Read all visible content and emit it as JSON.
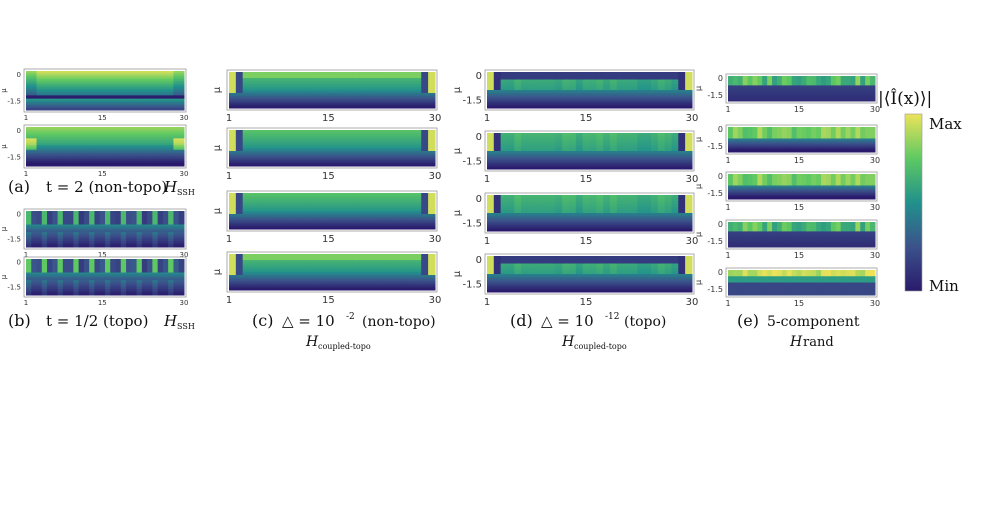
{
  "colorbar": {
    "label": "|⟨Î(x)⟩|",
    "max_label": "Max",
    "min_label": "Min",
    "colormap": "viridis"
  },
  "columns": [
    {
      "id": "a-b",
      "captions": [
        {
          "label": "(a)",
          "text": "t = 2 (non-topo)",
          "ham": "H",
          "sub": "SSH"
        },
        {
          "label": "(b)",
          "text": "t = 1/2 (topo)",
          "ham": "H",
          "sub": "SSH"
        }
      ]
    },
    {
      "id": "c",
      "captions": [
        {
          "label": "(c)",
          "text": "△ = 10",
          "sup": "-2",
          "tail": "(non-topo)",
          "ham": "H",
          "sub": "coupled-topo"
        }
      ]
    },
    {
      "id": "d",
      "captions": [
        {
          "label": "(d)",
          "text": "△ = 10",
          "sup": "-12",
          "tail": "(topo)",
          "ham": "H",
          "sub": "coupled-topo"
        }
      ]
    },
    {
      "id": "e",
      "captions": [
        {
          "label": "(e)",
          "text": "5-component",
          "ham": "H",
          "sub": "",
          "ham_text": "rand"
        }
      ]
    }
  ],
  "chart_data": [
    {
      "type": "heatmap",
      "panel": "a1",
      "pattern": "ssh_nontopo",
      "x_ticks": [
        "1",
        "15",
        "30"
      ],
      "y_ticks": [
        "0",
        "-1.5"
      ],
      "ylabel": "μ",
      "xlim": [
        1,
        30
      ],
      "ylim": [
        -2,
        0.2
      ],
      "n_cols": 30,
      "n_rows": 24
    },
    {
      "type": "heatmap",
      "panel": "a2",
      "pattern": "ssh_nontopo_2",
      "x_ticks": [
        "1",
        "15",
        "30"
      ],
      "y_ticks": [
        "0",
        "-1.5"
      ],
      "ylabel": "μ",
      "xlim": [
        1,
        30
      ],
      "ylim": [
        -2,
        0.2
      ],
      "n_cols": 30,
      "n_rows": 24
    },
    {
      "type": "heatmap",
      "panel": "b1",
      "pattern": "ssh_topo",
      "x_ticks": [
        "1",
        "15",
        "30"
      ],
      "y_ticks": [
        "0",
        "-1.5"
      ],
      "ylabel": "μ",
      "xlim": [
        1,
        30
      ],
      "ylim": [
        -2,
        0.2
      ],
      "n_cols": 30,
      "n_rows": 24
    },
    {
      "type": "heatmap",
      "panel": "b2",
      "pattern": "ssh_topo_2",
      "x_ticks": [
        "1",
        "15",
        "30"
      ],
      "y_ticks": [
        "0",
        "-1.5"
      ],
      "ylabel": "μ",
      "xlim": [
        1,
        30
      ],
      "ylim": [
        -2,
        0.2
      ],
      "n_cols": 30,
      "n_rows": 24
    },
    {
      "type": "heatmap",
      "panel": "c1",
      "pattern": "coupled_band_top",
      "x_ticks": [
        "1",
        "15",
        "30"
      ],
      "y_ticks": [],
      "ylabel": "μ",
      "xlim": [
        1,
        30
      ],
      "ylim": [
        -2,
        0.2
      ],
      "n_cols": 30,
      "n_rows": 24
    },
    {
      "type": "heatmap",
      "panel": "c2",
      "pattern": "coupled_band",
      "x_ticks": [
        "1",
        "15",
        "30"
      ],
      "y_ticks": [],
      "ylabel": "μ",
      "xlim": [
        1,
        30
      ],
      "ylim": [
        -2,
        0.2
      ],
      "n_cols": 30,
      "n_rows": 24
    },
    {
      "type": "heatmap",
      "panel": "c3",
      "pattern": "coupled_band",
      "x_ticks": [
        "1",
        "15",
        "30"
      ],
      "y_ticks": [],
      "ylabel": "μ",
      "xlim": [
        1,
        30
      ],
      "ylim": [
        -2,
        0.2
      ],
      "n_cols": 30,
      "n_rows": 24
    },
    {
      "type": "heatmap",
      "panel": "c4",
      "pattern": "coupled_band_top",
      "x_ticks": [
        "1",
        "15",
        "30"
      ],
      "y_ticks": [],
      "ylabel": "μ",
      "xlim": [
        1,
        30
      ],
      "ylim": [
        -2,
        0.2
      ],
      "n_cols": 30,
      "n_rows": 24
    },
    {
      "type": "heatmap",
      "panel": "d1",
      "pattern": "topo_block",
      "x_ticks": [
        "1",
        "15",
        "30"
      ],
      "y_ticks": [
        "0",
        "-1.5"
      ],
      "ylabel": "μ",
      "xlim": [
        1,
        30
      ],
      "ylim": [
        -2,
        0.2
      ],
      "n_cols": 30,
      "n_rows": 24
    },
    {
      "type": "heatmap",
      "panel": "d2",
      "pattern": "topo_block_2",
      "x_ticks": [
        "1",
        "15",
        "30"
      ],
      "y_ticks": [
        "0",
        "-1.5"
      ],
      "ylabel": "μ",
      "xlim": [
        1,
        30
      ],
      "ylim": [
        -2,
        0.2
      ],
      "n_cols": 30,
      "n_rows": 24
    },
    {
      "type": "heatmap",
      "panel": "d3",
      "pattern": "topo_block_2",
      "x_ticks": [
        "1",
        "15",
        "30"
      ],
      "y_ticks": [
        "0",
        "-1.5"
      ],
      "ylabel": "μ",
      "xlim": [
        1,
        30
      ],
      "ylim": [
        -2,
        0.2
      ],
      "n_cols": 30,
      "n_rows": 24
    },
    {
      "type": "heatmap",
      "panel": "d4",
      "pattern": "topo_block",
      "x_ticks": [
        "1",
        "15",
        "30"
      ],
      "y_ticks": [
        "0",
        "-1.5"
      ],
      "ylabel": "μ",
      "xlim": [
        1,
        30
      ],
      "ylim": [
        -2,
        0.2
      ],
      "n_cols": 30,
      "n_rows": 24
    },
    {
      "type": "heatmap",
      "panel": "e1",
      "pattern": "rand_dark",
      "x_ticks": [
        "1",
        "15",
        "30"
      ],
      "y_ticks": [
        "0",
        "-1.5"
      ],
      "ylabel": "μ",
      "xlim": [
        1,
        30
      ],
      "ylim": [
        -2,
        0.2
      ],
      "n_cols": 30,
      "n_rows": 24
    },
    {
      "type": "heatmap",
      "panel": "e2",
      "pattern": "rand_mid",
      "x_ticks": [
        "1",
        "15",
        "30"
      ],
      "y_ticks": [
        "0",
        "-1.5"
      ],
      "ylabel": "μ",
      "xlim": [
        1,
        30
      ],
      "ylim": [
        -2,
        0.2
      ],
      "n_cols": 30,
      "n_rows": 24
    },
    {
      "type": "heatmap",
      "panel": "e3",
      "pattern": "rand_mid",
      "x_ticks": [
        "1",
        "15",
        "30"
      ],
      "y_ticks": [
        "0",
        "-1.5"
      ],
      "ylabel": "μ",
      "xlim": [
        1,
        30
      ],
      "ylim": [
        -2,
        0.2
      ],
      "n_cols": 30,
      "n_rows": 24
    },
    {
      "type": "heatmap",
      "panel": "e4",
      "pattern": "rand_dark",
      "x_ticks": [
        "1",
        "15",
        "30"
      ],
      "y_ticks": [
        "0",
        "-1.5"
      ],
      "ylabel": "μ",
      "xlim": [
        1,
        30
      ],
      "ylim": [
        -2,
        0.2
      ],
      "n_cols": 30,
      "n_rows": 24
    },
    {
      "type": "heatmap",
      "panel": "e5",
      "pattern": "rand_bright",
      "x_ticks": [
        "1",
        "15",
        "30"
      ],
      "y_ticks": [
        "0",
        "-1.5"
      ],
      "ylabel": "μ",
      "xlim": [
        1,
        30
      ],
      "ylim": [
        -2,
        0.2
      ],
      "n_cols": 30,
      "n_rows": 24
    }
  ]
}
